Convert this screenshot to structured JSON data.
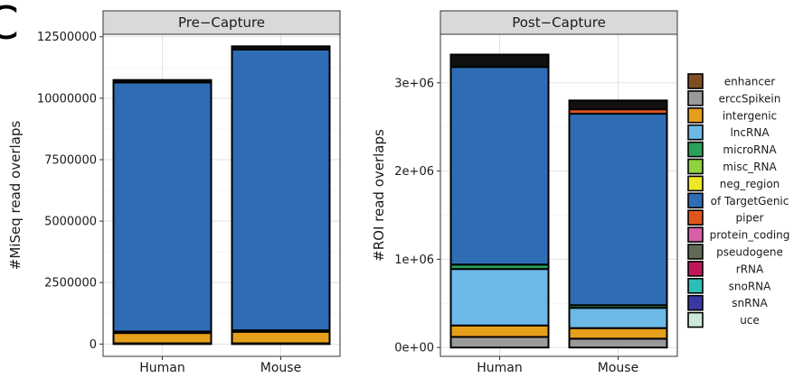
{
  "panel_label": "C",
  "colors": {
    "enhancer": "#7f4f24",
    "erccSpikein": "#9a9a9a",
    "intergenic": "#e69f1a",
    "lncRNA": "#6cb8e6",
    "microRNA": "#2aa05a",
    "misc_RNA": "#8fd13f",
    "neg_region": "#ece727",
    "of TargetGenic": "#2e6db4",
    "piper": "#e0561f",
    "protein_coding": "#d65fa8",
    "pseudogene": "#5f6b55",
    "rRNA": "#c2185b",
    "snoRNA": "#2bbfb6",
    "snRNA": "#3b38a6",
    "uce": "#cbe9d8",
    "unlabeled_top": "#111111"
  },
  "legend": {
    "items": [
      "enhancer",
      "erccSpikein",
      "intergenic",
      "lncRNA",
      "microRNA",
      "misc_RNA",
      "neg_region",
      "of TargetGenic",
      "piper",
      "protein_coding",
      "pseudogene",
      "rRNA",
      "snoRNA",
      "snRNA",
      "uce"
    ]
  },
  "chart_data": [
    {
      "type": "bar",
      "stacked": true,
      "title": "Pre−Capture",
      "xlabel": "",
      "ylabel": "#MiSeq read overlaps",
      "categories": [
        "Human",
        "Mouse"
      ],
      "ylim": [
        -500000,
        12600000
      ],
      "yticks": [
        0,
        2500000,
        5000000,
        7500000,
        10000000,
        12500000
      ],
      "ytick_labels": [
        "0",
        "2500000",
        "5000000",
        "7500000",
        "10000000",
        "12500000"
      ],
      "grid": true,
      "series": [
        {
          "name": "erccSpikein",
          "values": [
            30000,
            30000
          ]
        },
        {
          "name": "intergenic",
          "values": [
            420000,
            470000
          ]
        },
        {
          "name": "lncRNA",
          "values": [
            40000,
            40000
          ]
        },
        {
          "name": "microRNA",
          "values": [
            20000,
            20000
          ]
        },
        {
          "name": "of TargetGenic",
          "values": [
            10130000,
            11420000
          ]
        },
        {
          "name": "unlabeled_top",
          "values": [
            100000,
            130000
          ]
        }
      ]
    },
    {
      "type": "bar",
      "stacked": true,
      "title": "Post−Capture",
      "xlabel": "",
      "ylabel": "#ROI read overlaps",
      "categories": [
        "Human",
        "Mouse"
      ],
      "ylim": [
        -100000,
        3550000
      ],
      "yticks": [
        0,
        1000000,
        2000000,
        3000000
      ],
      "ytick_labels": [
        "0e+00",
        "1e+06",
        "2e+06",
        "3e+06"
      ],
      "grid": true,
      "series": [
        {
          "name": "erccSpikein",
          "values": [
            120000,
            100000
          ]
        },
        {
          "name": "intergenic",
          "values": [
            130000,
            120000
          ]
        },
        {
          "name": "lncRNA",
          "values": [
            640000,
            230000
          ]
        },
        {
          "name": "microRNA",
          "values": [
            50000,
            30000
          ]
        },
        {
          "name": "of TargetGenic",
          "values": [
            2240000,
            2170000
          ]
        },
        {
          "name": "piper",
          "values": [
            0,
            50000
          ]
        },
        {
          "name": "unlabeled_top",
          "values": [
            140000,
            100000
          ]
        }
      ]
    }
  ]
}
